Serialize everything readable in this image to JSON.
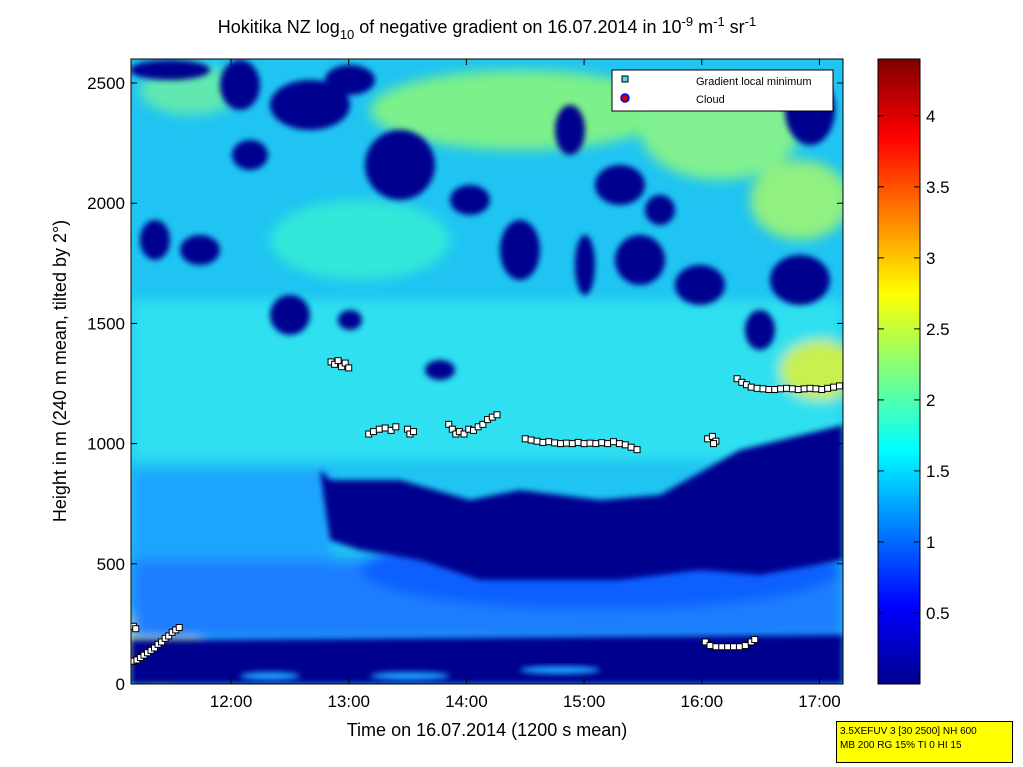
{
  "chart_data": {
    "type": "heatmap",
    "title": {
      "prefix": "Hokitika NZ log",
      "sub": "10",
      "middle": " of negative gradient on 16.07.2014 in 10",
      "sup1": "-9",
      "unit1": " m",
      "sup2": "-1",
      "unit2": " sr",
      "sup3": "-1"
    },
    "xlabel": "Time on 16.07.2014 (1200 s mean)",
    "ylabel": "Height in m (240 m mean, tilted by 2°)",
    "x_ticks": [
      "12:00",
      "13:00",
      "14:00",
      "15:00",
      "16:00",
      "17:00"
    ],
    "x_tick_hours": [
      12,
      13,
      14,
      15,
      16,
      17
    ],
    "xlim_hours": [
      11.15,
      17.2
    ],
    "y_ticks": [
      0,
      500,
      1000,
      1500,
      2000,
      2500
    ],
    "ylim": [
      0,
      2600
    ],
    "colorbar": {
      "ticks": [
        "0.5",
        "1",
        "1.5",
        "2",
        "2.5",
        "3",
        "3.5",
        "4"
      ],
      "tick_values": [
        0.5,
        1,
        1.5,
        2,
        2.5,
        3,
        3.5,
        4
      ],
      "range": [
        0,
        4.4
      ],
      "colormap": "jet"
    },
    "legend": {
      "placement": "top-right",
      "entries": [
        {
          "label": "Gradient local minimum",
          "marker": "square",
          "color": "#40e0e0"
        },
        {
          "label": "Cloud",
          "marker": "circle",
          "color": "#cc0000"
        }
      ]
    },
    "series": [
      {
        "name": "Gradient local minimum",
        "points": [
          [
            11.17,
            240
          ],
          [
            11.19,
            230
          ],
          [
            11.17,
            95
          ],
          [
            11.2,
            100
          ],
          [
            11.23,
            110
          ],
          [
            11.26,
            120
          ],
          [
            11.29,
            130
          ],
          [
            11.32,
            140
          ],
          [
            11.35,
            150
          ],
          [
            11.38,
            165
          ],
          [
            11.41,
            175
          ],
          [
            11.44,
            190
          ],
          [
            11.47,
            200
          ],
          [
            11.5,
            215
          ],
          [
            11.53,
            225
          ],
          [
            11.56,
            235
          ],
          [
            12.85,
            1340
          ],
          [
            12.88,
            1330
          ],
          [
            12.91,
            1345
          ],
          [
            12.94,
            1320
          ],
          [
            12.97,
            1335
          ],
          [
            13.0,
            1315
          ],
          [
            13.17,
            1040
          ],
          [
            13.21,
            1050
          ],
          [
            13.26,
            1060
          ],
          [
            13.31,
            1065
          ],
          [
            13.36,
            1055
          ],
          [
            13.4,
            1070
          ],
          [
            13.5,
            1060
          ],
          [
            13.52,
            1040
          ],
          [
            13.55,
            1050
          ],
          [
            13.85,
            1080
          ],
          [
            13.88,
            1060
          ],
          [
            13.91,
            1040
          ],
          [
            13.94,
            1050
          ],
          [
            13.98,
            1040
          ],
          [
            14.02,
            1060
          ],
          [
            14.06,
            1055
          ],
          [
            14.1,
            1070
          ],
          [
            14.14,
            1080
          ],
          [
            14.18,
            1100
          ],
          [
            14.22,
            1110
          ],
          [
            14.26,
            1120
          ],
          [
            14.5,
            1020
          ],
          [
            14.55,
            1015
          ],
          [
            14.6,
            1010
          ],
          [
            14.65,
            1005
          ],
          [
            14.7,
            1008
          ],
          [
            14.75,
            1003
          ],
          [
            14.8,
            1000
          ],
          [
            14.85,
            1002
          ],
          [
            14.9,
            1000
          ],
          [
            14.95,
            1005
          ],
          [
            15.0,
            1000
          ],
          [
            15.05,
            1002
          ],
          [
            15.1,
            1000
          ],
          [
            15.15,
            1004
          ],
          [
            15.2,
            1000
          ],
          [
            15.25,
            1008
          ],
          [
            15.3,
            1000
          ],
          [
            15.35,
            995
          ],
          [
            15.4,
            985
          ],
          [
            15.45,
            975
          ],
          [
            16.05,
            1020
          ],
          [
            16.09,
            1030
          ],
          [
            16.12,
            1010
          ],
          [
            16.1,
            1000
          ],
          [
            16.03,
            175
          ],
          [
            16.07,
            160
          ],
          [
            16.12,
            155
          ],
          [
            16.17,
            155
          ],
          [
            16.22,
            155
          ],
          [
            16.27,
            155
          ],
          [
            16.32,
            155
          ],
          [
            16.37,
            160
          ],
          [
            16.42,
            175
          ],
          [
            16.45,
            185
          ],
          [
            16.3,
            1270
          ],
          [
            16.34,
            1255
          ],
          [
            16.38,
            1245
          ],
          [
            16.42,
            1235
          ],
          [
            16.47,
            1230
          ],
          [
            16.52,
            1228
          ],
          [
            16.57,
            1225
          ],
          [
            16.62,
            1225
          ],
          [
            16.67,
            1228
          ],
          [
            16.72,
            1230
          ],
          [
            16.77,
            1228
          ],
          [
            16.82,
            1225
          ],
          [
            16.87,
            1228
          ],
          [
            16.92,
            1230
          ],
          [
            16.97,
            1228
          ],
          [
            17.02,
            1225
          ],
          [
            17.07,
            1230
          ],
          [
            17.12,
            1235
          ],
          [
            17.17,
            1240
          ]
        ]
      },
      {
        "name": "Cloud",
        "points": []
      }
    ],
    "heatmap_summary": {
      "surface_layer": {
        "height_range": [
          0,
          180
        ],
        "value": "low"
      },
      "morning_surface_high": {
        "time_range": [
          11.15,
          11.6
        ],
        "height_range": [
          0,
          250
        ],
        "value": "high"
      },
      "low_gradient_region": {
        "time_range": [
          12.6,
          17.2
        ],
        "height_range": [
          350,
          1050
        ],
        "value": "low"
      },
      "upper_edge_high": {
        "time_range": [
          16.3,
          17.2
        ],
        "height_range": [
          1150,
          1350
        ],
        "value": "high"
      }
    }
  },
  "info_box": {
    "line1": "3.5XEFUV 3 [30 2500] NH 600",
    "line2": "MB 200 RG 15% TI 0 HI 15"
  }
}
